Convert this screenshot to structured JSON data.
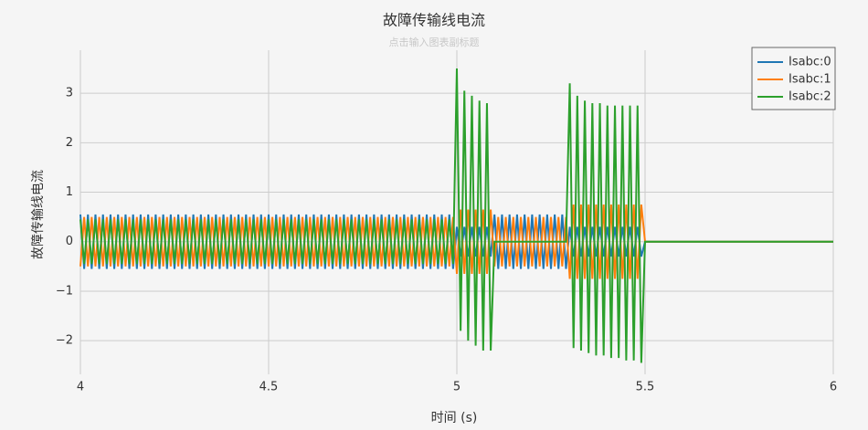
{
  "chart_data": {
    "type": "line",
    "title": "故障传输线电流",
    "subtitle": "点击输入图表副标题",
    "x_label": "时间 (s)",
    "y_label": "故障传输线电流",
    "grid": true,
    "legend": "top-right",
    "xlim": [
      4,
      6
    ],
    "xticks": [
      4,
      4.5,
      5,
      5.5,
      6
    ],
    "ylim": [
      -2.68,
      3.87
    ],
    "yticks": [
      {
        "value": -2,
        "label": "−2"
      },
      {
        "value": -1,
        "label": "−1"
      },
      0,
      1,
      2,
      3
    ],
    "x": [
      4,
      4.01,
      4.02,
      4.03,
      4.04,
      4.05,
      4.06,
      4.07,
      4.08,
      4.09,
      4.1,
      4.11,
      4.12,
      4.13,
      4.14,
      4.15,
      4.16,
      4.17,
      4.18,
      4.19,
      4.2,
      4.21,
      4.22,
      4.23,
      4.24,
      4.25,
      4.26,
      4.27,
      4.28,
      4.29,
      4.3,
      4.31,
      4.32,
      4.33,
      4.34,
      4.35,
      4.36,
      4.37,
      4.38,
      4.39,
      4.4,
      4.41,
      4.42,
      4.43,
      4.44,
      4.45,
      4.46,
      4.47,
      4.48,
      4.49,
      4.5,
      4.51,
      4.52,
      4.53,
      4.54,
      4.55,
      4.56,
      4.57,
      4.58,
      4.59,
      4.6,
      4.61,
      4.62,
      4.63,
      4.64,
      4.65,
      4.66,
      4.67,
      4.68,
      4.69,
      4.7,
      4.71,
      4.72,
      4.73,
      4.74,
      4.75,
      4.76,
      4.77,
      4.78,
      4.79,
      4.8,
      4.81,
      4.82,
      4.83,
      4.84,
      4.85,
      4.86,
      4.87,
      4.88,
      4.89,
      4.9,
      4.91,
      4.92,
      4.93,
      4.94,
      4.95,
      4.96,
      4.97,
      4.98,
      4.99,
      5,
      5.01,
      5.02,
      5.03,
      5.04,
      5.05,
      5.06,
      5.07,
      5.08,
      5.09,
      5.1,
      5.11,
      5.12,
      5.13,
      5.14,
      5.15,
      5.16,
      5.17,
      5.18,
      5.19,
      5.2,
      5.21,
      5.22,
      5.23,
      5.24,
      5.25,
      5.26,
      5.27,
      5.28,
      5.29,
      5.3,
      5.31,
      5.32,
      5.33,
      5.34,
      5.35,
      5.36,
      5.37,
      5.38,
      5.39,
      5.4,
      5.41,
      5.42,
      5.43,
      5.44,
      5.45,
      5.46,
      5.47,
      5.48,
      5.49,
      5.5,
      5.51,
      5.52,
      5.53,
      5.54,
      5.55,
      5.56,
      5.57,
      5.58,
      5.59,
      5.6,
      5.61,
      5.62,
      5.63,
      5.64,
      5.65,
      5.66,
      5.67,
      5.68,
      5.69,
      5.7,
      5.71,
      5.72,
      5.73,
      5.74,
      5.75,
      5.76,
      5.77,
      5.78,
      5.79,
      5.8,
      5.81,
      5.82,
      5.83,
      5.84,
      5.85,
      5.86,
      5.87,
      5.88,
      5.89,
      5.9,
      5.91,
      5.92,
      5.93,
      5.94,
      5.95,
      5.96,
      5.97,
      5.98,
      5.99,
      6
    ],
    "series": [
      {
        "name": "Isabc:0",
        "color": "#1f77b4",
        "values": [
          0.55,
          -0.55,
          0.55,
          -0.55,
          0.55,
          -0.55,
          0.55,
          -0.55,
          0.55,
          -0.55,
          0.55,
          -0.55,
          0.55,
          -0.55,
          0.55,
          -0.55,
          0.55,
          -0.55,
          0.55,
          -0.55,
          0.55,
          -0.55,
          0.55,
          -0.55,
          0.55,
          -0.55,
          0.55,
          -0.55,
          0.55,
          -0.55,
          0.55,
          -0.55,
          0.55,
          -0.55,
          0.55,
          -0.55,
          0.55,
          -0.55,
          0.55,
          -0.55,
          0.55,
          -0.55,
          0.55,
          -0.55,
          0.55,
          -0.55,
          0.55,
          -0.55,
          0.55,
          -0.55,
          0.55,
          -0.55,
          0.55,
          -0.55,
          0.55,
          -0.55,
          0.55,
          -0.55,
          0.55,
          -0.55,
          0.55,
          -0.55,
          0.55,
          -0.55,
          0.55,
          -0.55,
          0.55,
          -0.55,
          0.55,
          -0.55,
          0.55,
          -0.55,
          0.55,
          -0.55,
          0.55,
          -0.55,
          0.55,
          -0.55,
          0.55,
          -0.55,
          0.55,
          -0.55,
          0.55,
          -0.55,
          0.55,
          -0.55,
          0.55,
          -0.55,
          0.55,
          -0.55,
          0.55,
          -0.55,
          0.55,
          -0.55,
          0.55,
          -0.55,
          0.55,
          -0.55,
          0.55,
          -0.55,
          0.3,
          -0.3,
          0.3,
          -0.3,
          0.3,
          -0.3,
          0.3,
          -0.3,
          0.3,
          -0.3,
          0.55,
          -0.55,
          0.55,
          -0.55,
          0.55,
          -0.55,
          0.55,
          -0.55,
          0.55,
          -0.55,
          0.55,
          -0.55,
          0.55,
          -0.55,
          0.55,
          -0.55,
          0.55,
          -0.55,
          0.55,
          -0.55,
          0.3,
          -0.3,
          0.3,
          -0.3,
          0.3,
          -0.3,
          0.3,
          -0.3,
          0.3,
          -0.3,
          0.3,
          -0.3,
          0.3,
          -0.3,
          0.3,
          -0.3,
          0.3,
          -0.3,
          0.3,
          -0.3,
          0,
          0,
          0,
          0,
          0,
          0,
          0,
          0,
          0,
          0,
          0,
          0,
          0,
          0,
          0,
          0,
          0,
          0,
          0,
          0,
          0,
          0,
          0,
          0,
          0,
          0,
          0,
          0,
          0,
          0,
          0,
          0,
          0,
          0,
          0,
          0,
          0,
          0,
          0,
          0,
          0,
          0,
          0,
          0,
          0,
          0,
          0,
          0,
          0,
          0,
          0
        ]
      },
      {
        "name": "Isabc:1",
        "color": "#ff7f0e",
        "values": [
          -0.5,
          0.5,
          -0.5,
          0.5,
          -0.5,
          0.5,
          -0.5,
          0.5,
          -0.5,
          0.5,
          -0.5,
          0.5,
          -0.5,
          0.5,
          -0.5,
          0.5,
          -0.5,
          0.5,
          -0.5,
          0.5,
          -0.5,
          0.5,
          -0.5,
          0.5,
          -0.5,
          0.5,
          -0.5,
          0.5,
          -0.5,
          0.5,
          -0.5,
          0.5,
          -0.5,
          0.5,
          -0.5,
          0.5,
          -0.5,
          0.5,
          -0.5,
          0.5,
          -0.5,
          0.5,
          -0.5,
          0.5,
          -0.5,
          0.5,
          -0.5,
          0.5,
          -0.5,
          0.5,
          -0.5,
          0.5,
          -0.5,
          0.5,
          -0.5,
          0.5,
          -0.5,
          0.5,
          -0.5,
          0.5,
          -0.5,
          0.5,
          -0.5,
          0.5,
          -0.5,
          0.5,
          -0.5,
          0.5,
          -0.5,
          0.5,
          -0.5,
          0.5,
          -0.5,
          0.5,
          -0.5,
          0.5,
          -0.5,
          0.5,
          -0.5,
          0.5,
          -0.5,
          0.5,
          -0.5,
          0.5,
          -0.5,
          0.5,
          -0.5,
          0.5,
          -0.5,
          0.5,
          -0.5,
          0.5,
          -0.5,
          0.5,
          -0.5,
          0.5,
          -0.5,
          0.5,
          -0.5,
          0.5,
          -0.65,
          0.65,
          -0.65,
          0.65,
          -0.65,
          0.65,
          -0.65,
          0.65,
          -0.65,
          0.65,
          -0.5,
          0.5,
          -0.5,
          0.5,
          -0.5,
          0.5,
          -0.5,
          0.5,
          -0.5,
          0.5,
          -0.5,
          0.5,
          -0.5,
          0.5,
          -0.5,
          0.5,
          -0.5,
          0.5,
          -0.5,
          0.5,
          -0.75,
          0.75,
          -0.75,
          0.75,
          -0.75,
          0.75,
          -0.75,
          0.75,
          -0.75,
          0.75,
          -0.75,
          0.75,
          -0.75,
          0.75,
          -0.75,
          0.75,
          -0.75,
          0.75,
          -0.75,
          0.75,
          0,
          0,
          0,
          0,
          0,
          0,
          0,
          0,
          0,
          0,
          0,
          0,
          0,
          0,
          0,
          0,
          0,
          0,
          0,
          0,
          0,
          0,
          0,
          0,
          0,
          0,
          0,
          0,
          0,
          0,
          0,
          0,
          0,
          0,
          0,
          0,
          0,
          0,
          0,
          0,
          0,
          0,
          0,
          0,
          0,
          0,
          0,
          0,
          0,
          0,
          0
        ]
      },
      {
        "name": "Isabc:2",
        "color": "#2ca02c",
        "values": [
          0.45,
          -0.45,
          0.45,
          -0.45,
          0.45,
          -0.45,
          0.45,
          -0.45,
          0.45,
          -0.45,
          0.45,
          -0.45,
          0.45,
          -0.45,
          0.45,
          -0.45,
          0.45,
          -0.45,
          0.45,
          -0.45,
          0.45,
          -0.45,
          0.45,
          -0.45,
          0.45,
          -0.45,
          0.45,
          -0.45,
          0.45,
          -0.45,
          0.45,
          -0.45,
          0.45,
          -0.45,
          0.45,
          -0.45,
          0.45,
          -0.45,
          0.45,
          -0.45,
          0.45,
          -0.45,
          0.45,
          -0.45,
          0.45,
          -0.45,
          0.45,
          -0.45,
          0.45,
          -0.45,
          0.45,
          -0.45,
          0.45,
          -0.45,
          0.45,
          -0.45,
          0.45,
          -0.45,
          0.45,
          -0.45,
          0.45,
          -0.45,
          0.45,
          -0.45,
          0.45,
          -0.45,
          0.45,
          -0.45,
          0.45,
          -0.45,
          0.45,
          -0.45,
          0.45,
          -0.45,
          0.45,
          -0.45,
          0.45,
          -0.45,
          0.45,
          -0.45,
          0.45,
          -0.45,
          0.45,
          -0.45,
          0.45,
          -0.45,
          0.45,
          -0.45,
          0.45,
          -0.45,
          0.45,
          -0.45,
          0.45,
          -0.45,
          0.45,
          -0.45,
          0.45,
          -0.45,
          0.45,
          -0.45,
          3.5,
          -1.8,
          3.05,
          -2,
          2.95,
          -2.1,
          2.85,
          -2.2,
          2.8,
          -2.2,
          0,
          0,
          0,
          0,
          0,
          0,
          0,
          0,
          0,
          0,
          0,
          0,
          0,
          0,
          0,
          0,
          0,
          0,
          0,
          0,
          3.2,
          -2.15,
          2.95,
          -2.2,
          2.85,
          -2.25,
          2.8,
          -2.3,
          2.8,
          -2.3,
          2.75,
          -2.35,
          2.75,
          -2.35,
          2.75,
          -2.4,
          2.75,
          -2.4,
          2.75,
          -2.45,
          0,
          0,
          0,
          0,
          0,
          0,
          0,
          0,
          0,
          0,
          0,
          0,
          0,
          0,
          0,
          0,
          0,
          0,
          0,
          0,
          0,
          0,
          0,
          0,
          0,
          0,
          0,
          0,
          0,
          0,
          0,
          0,
          0,
          0,
          0,
          0,
          0,
          0,
          0,
          0,
          0,
          0,
          0,
          0,
          0,
          0,
          0,
          0,
          0,
          0,
          0
        ]
      }
    ]
  }
}
